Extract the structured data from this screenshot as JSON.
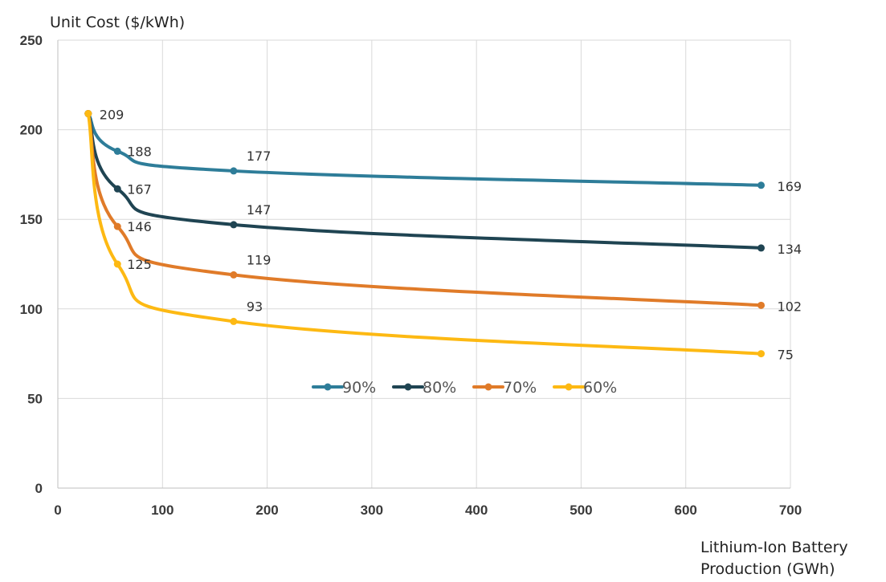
{
  "chart_data": {
    "type": "line",
    "ylabel": "Unit Cost ($/kWh)",
    "xlabel_lines": [
      "Lithium-Ion Battery",
      "Production (GWh)"
    ],
    "xlim": [
      0,
      700
    ],
    "ylim": [
      0,
      250
    ],
    "x_ticks": [
      0,
      100,
      200,
      300,
      400,
      500,
      600,
      700
    ],
    "y_ticks": [
      0,
      50,
      100,
      150,
      200,
      250
    ],
    "grid": true,
    "legend_position": "inside-center",
    "series": [
      {
        "name": "90%",
        "color": "#2E7D99",
        "x": [
          29,
          57,
          168,
          672
        ],
        "y": [
          209,
          188,
          177,
          169
        ],
        "labels": [
          "209",
          "188",
          "177",
          "169"
        ]
      },
      {
        "name": "80%",
        "color": "#1F4452",
        "x": [
          29,
          57,
          168,
          672
        ],
        "y": [
          209,
          167,
          147,
          134
        ],
        "labels": [
          "",
          "167",
          "147",
          "134"
        ]
      },
      {
        "name": "70%",
        "color": "#E07B29",
        "x": [
          29,
          57,
          168,
          672
        ],
        "y": [
          209,
          146,
          119,
          102
        ],
        "labels": [
          "",
          "146",
          "119",
          "102"
        ]
      },
      {
        "name": "60%",
        "color": "#FDB913",
        "x": [
          29,
          57,
          168,
          672
        ],
        "y": [
          209,
          125,
          93,
          75
        ],
        "labels": [
          "",
          "125",
          "93",
          "75"
        ]
      }
    ]
  }
}
